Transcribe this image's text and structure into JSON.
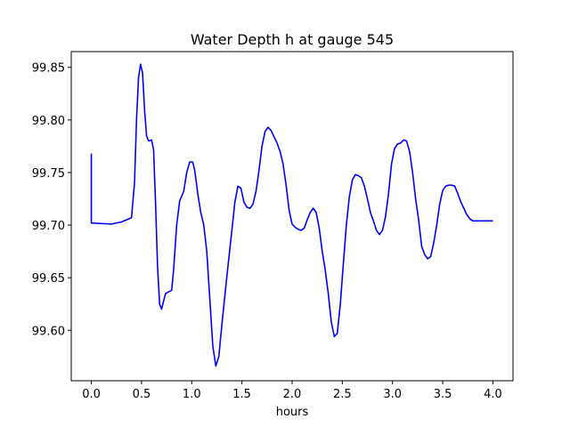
{
  "chart_data": {
    "type": "line",
    "title": "Water Depth h at gauge 545",
    "xlabel": "hours",
    "ylabel": "",
    "xlim": [
      -0.2,
      4.2
    ],
    "ylim": [
      99.552,
      99.865
    ],
    "xticks": [
      0.0,
      0.5,
      1.0,
      1.5,
      2.0,
      2.5,
      3.0,
      3.5,
      4.0
    ],
    "xtick_labels": [
      "0.0",
      "0.5",
      "1.0",
      "1.5",
      "2.0",
      "2.5",
      "3.0",
      "3.5",
      "4.0"
    ],
    "yticks": [
      99.6,
      99.65,
      99.7,
      99.75,
      99.8,
      99.85
    ],
    "ytick_labels": [
      "99.60",
      "99.65",
      "99.70",
      "99.75",
      "99.80",
      "99.85"
    ],
    "grid": false,
    "color": "#0000ff",
    "series": [
      {
        "x": [
          0.0,
          0.0,
          0.2,
          0.3,
          0.4,
          0.43,
          0.45,
          0.47,
          0.49,
          0.51,
          0.53,
          0.55,
          0.57,
          0.6,
          0.62,
          0.64,
          0.66,
          0.68,
          0.7,
          0.72,
          0.74,
          0.76,
          0.8,
          0.82,
          0.85,
          0.88,
          0.92,
          0.95,
          0.98,
          1.01,
          1.03,
          1.06,
          1.09,
          1.12,
          1.15,
          1.18,
          1.21,
          1.24,
          1.27,
          1.3,
          1.33,
          1.36,
          1.4,
          1.43,
          1.46,
          1.49,
          1.52,
          1.55,
          1.58,
          1.61,
          1.64,
          1.67,
          1.7,
          1.73,
          1.76,
          1.79,
          1.82,
          1.85,
          1.88,
          1.91,
          1.94,
          1.97,
          2.0,
          2.03,
          2.06,
          2.09,
          2.12,
          2.15,
          2.18,
          2.21,
          2.24,
          2.27,
          2.3,
          2.33,
          2.36,
          2.39,
          2.42,
          2.45,
          2.48,
          2.51,
          2.54,
          2.57,
          2.6,
          2.63,
          2.66,
          2.69,
          2.72,
          2.75,
          2.78,
          2.81,
          2.84,
          2.87,
          2.9,
          2.93,
          2.96,
          2.99,
          3.02,
          3.05,
          3.08,
          3.11,
          3.14,
          3.17,
          3.2,
          3.23,
          3.26,
          3.29,
          3.32,
          3.35,
          3.38,
          3.41,
          3.44,
          3.47,
          3.5,
          3.53,
          3.56,
          3.59,
          3.62,
          3.65,
          3.68,
          3.71,
          3.74,
          3.77,
          3.8,
          3.83,
          3.86,
          3.89,
          3.92,
          3.95,
          3.98,
          4.0
        ],
        "y": [
          99.768,
          99.702,
          99.701,
          99.703,
          99.707,
          99.74,
          99.8,
          99.84,
          99.853,
          99.845,
          99.81,
          99.785,
          99.78,
          99.781,
          99.772,
          99.72,
          99.66,
          99.625,
          99.62,
          99.628,
          99.635,
          99.636,
          99.638,
          99.658,
          99.7,
          99.723,
          99.732,
          99.75,
          99.76,
          99.76,
          99.752,
          99.73,
          99.712,
          99.7,
          99.675,
          99.63,
          99.585,
          99.566,
          99.575,
          99.605,
          99.633,
          99.66,
          99.695,
          99.722,
          99.737,
          99.735,
          99.722,
          99.717,
          99.716,
          99.72,
          99.732,
          99.752,
          99.775,
          99.789,
          99.793,
          99.79,
          99.784,
          99.778,
          99.77,
          99.758,
          99.738,
          99.714,
          99.701,
          99.698,
          99.696,
          99.695,
          99.697,
          99.705,
          99.712,
          99.716,
          99.712,
          99.697,
          99.675,
          99.657,
          99.635,
          99.608,
          99.594,
          99.597,
          99.625,
          99.663,
          99.7,
          99.727,
          99.743,
          99.748,
          99.747,
          99.745,
          99.737,
          99.725,
          99.712,
          99.704,
          99.695,
          99.691,
          99.695,
          99.708,
          99.73,
          99.758,
          99.773,
          99.777,
          99.778,
          99.781,
          99.78,
          99.77,
          99.75,
          99.725,
          99.705,
          99.68,
          99.672,
          99.668,
          99.67,
          99.683,
          99.7,
          99.72,
          99.733,
          99.737,
          99.738,
          99.738,
          99.737,
          99.73,
          99.722,
          99.716,
          99.71,
          99.706,
          99.704,
          99.704,
          99.704,
          99.704,
          99.704,
          99.704,
          99.704,
          99.704
        ]
      }
    ]
  }
}
